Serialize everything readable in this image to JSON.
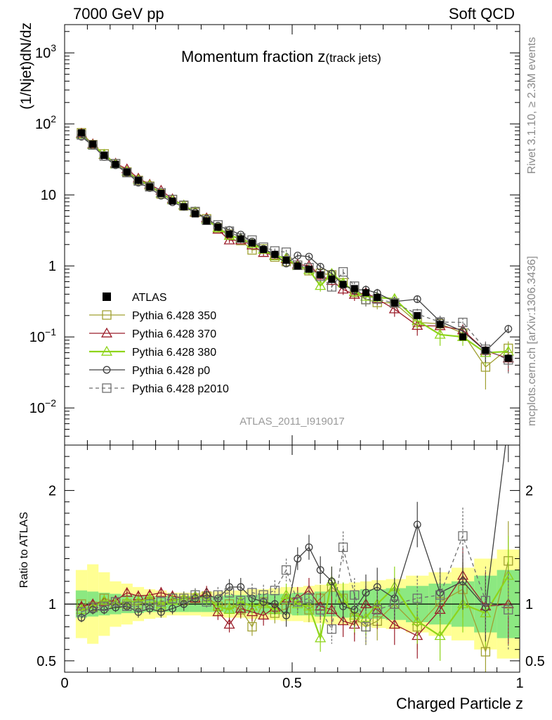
{
  "header": {
    "left": "7000 GeV pp",
    "right": "Soft QCD",
    "side_top": "Rivet 3.1.10, ≥ 2.3M events",
    "side_bottom": "mcplots.cern.ch [arXiv:1306.3436]"
  },
  "chart_data": {
    "type": "line",
    "title_main": "Momentum fraction ",
    "title_var": "z",
    "title_sub": "(track jets)",
    "ylabel_top": "(1/Njet)dN/dz",
    "ylabel_ratio": "Ratio to ATLAS",
    "xlabel": "Charged Particle z",
    "watermark": "ATLAS_2011_I919017",
    "xlim": [
      0,
      1
    ],
    "ylim_top": [
      0.003,
      2500
    ],
    "ylim_ratio": [
      0.4,
      2.4
    ],
    "y_scale_top": "log",
    "x_ticks": [
      {
        "value": 0,
        "label": "0"
      },
      {
        "value": 0.5,
        "label": "0.5"
      },
      {
        "value": 1,
        "label": "1"
      }
    ],
    "y_ticks_top": [
      {
        "value": 1000,
        "base": "10",
        "exp": "3"
      },
      {
        "value": 100,
        "base": "10",
        "exp": "2"
      },
      {
        "value": 10,
        "base": "10",
        "exp": ""
      },
      {
        "value": 1,
        "base": "1",
        "exp": ""
      },
      {
        "value": 0.1,
        "base": "10",
        "exp": "−1"
      },
      {
        "value": 0.01,
        "base": "10",
        "exp": "−2"
      }
    ],
    "y_ticks_ratio": [
      {
        "value": 2,
        "label": "2"
      },
      {
        "value": 1,
        "label": "1"
      },
      {
        "value": 0.5,
        "label": "0.5"
      }
    ],
    "legend_position": "bottom-left",
    "x": [
      0.037,
      0.062,
      0.087,
      0.112,
      0.137,
      0.162,
      0.187,
      0.212,
      0.237,
      0.262,
      0.287,
      0.312,
      0.337,
      0.362,
      0.387,
      0.412,
      0.437,
      0.462,
      0.487,
      0.512,
      0.537,
      0.562,
      0.587,
      0.612,
      0.637,
      0.662,
      0.687,
      0.725,
      0.775,
      0.825,
      0.875,
      0.925,
      0.975
    ],
    "data": {
      "name": "ATLAS",
      "color": "#000000",
      "values": [
        75,
        52,
        36,
        27,
        21,
        16,
        13,
        10.5,
        8.2,
        6.8,
        5.4,
        4.3,
        3.5,
        2.8,
        2.4,
        2.1,
        1.7,
        1.45,
        1.2,
        1.0,
        0.9,
        0.75,
        0.65,
        0.55,
        0.48,
        0.42,
        0.36,
        0.3,
        0.2,
        0.15,
        0.1,
        0.065,
        0.05
      ],
      "ratio_band_inner": [
        0.12,
        0.11,
        0.1,
        0.09,
        0.08,
        0.08,
        0.07,
        0.07,
        0.07,
        0.07,
        0.07,
        0.07,
        0.07,
        0.08,
        0.08,
        0.08,
        0.09,
        0.09,
        0.09,
        0.1,
        0.1,
        0.11,
        0.11,
        0.12,
        0.12,
        0.13,
        0.13,
        0.14,
        0.16,
        0.18,
        0.2,
        0.25,
        0.3
      ],
      "ratio_band_outer": [
        0.3,
        0.35,
        0.28,
        0.2,
        0.18,
        0.15,
        0.13,
        0.12,
        0.1,
        0.1,
        0.1,
        0.11,
        0.11,
        0.12,
        0.12,
        0.13,
        0.13,
        0.14,
        0.15,
        0.15,
        0.16,
        0.17,
        0.18,
        0.18,
        0.19,
        0.2,
        0.21,
        0.22,
        0.25,
        0.28,
        0.32,
        0.4,
        0.48
      ]
    },
    "series": [
      {
        "name": "Pythia 6.428 350",
        "color": "#a0a032",
        "marker": "square",
        "dash": false,
        "ratio": [
          1.0,
          0.98,
          1.05,
          1.02,
          1.0,
          1.0,
          1.02,
          0.98,
          1.05,
          1.03,
          1.05,
          1.07,
          0.98,
          1.0,
          0.95,
          0.8,
          1.02,
          0.92,
          0.96,
          1.02,
          0.95,
          1.05,
          1.15,
          1.05,
          0.88,
          0.8,
          0.85,
          1.0,
          0.8,
          1.02,
          1.13,
          0.58,
          1.38
        ],
        "ratio_err": [
          0.04,
          0.04,
          0.04,
          0.04,
          0.04,
          0.05,
          0.05,
          0.05,
          0.05,
          0.06,
          0.06,
          0.06,
          0.07,
          0.07,
          0.08,
          0.08,
          0.09,
          0.09,
          0.1,
          0.1,
          0.11,
          0.12,
          0.13,
          0.14,
          0.15,
          0.16,
          0.17,
          0.18,
          0.2,
          0.22,
          0.25,
          0.3,
          0.35
        ]
      },
      {
        "name": "Pythia 6.428 370",
        "color": "#9b1d2a",
        "marker": "triangle",
        "dash": false,
        "ratio": [
          0.98,
          1.0,
          1.02,
          1.03,
          1.1,
          1.07,
          1.08,
          1.1,
          1.07,
          1.05,
          1.05,
          1.1,
          0.93,
          0.82,
          0.96,
          0.93,
          0.9,
          0.97,
          1.05,
          1.05,
          1.12,
          0.98,
          0.95,
          0.85,
          0.82,
          1.0,
          0.95,
          0.82,
          0.72,
          0.95,
          1.25,
          0.98,
          1.0
        ],
        "ratio_err": [
          0.04,
          0.04,
          0.04,
          0.04,
          0.04,
          0.05,
          0.05,
          0.05,
          0.05,
          0.06,
          0.06,
          0.06,
          0.07,
          0.07,
          0.08,
          0.08,
          0.09,
          0.09,
          0.1,
          0.1,
          0.11,
          0.12,
          0.13,
          0.14,
          0.15,
          0.16,
          0.17,
          0.18,
          0.2,
          0.22,
          0.25,
          0.3,
          0.35
        ]
      },
      {
        "name": "Pythia 6.428 380",
        "color": "#8ed41a",
        "marker": "triangle",
        "dash": false,
        "ratio": [
          0.95,
          0.97,
          1.03,
          1.0,
          1.02,
          1.02,
          1.05,
          1.0,
          1.03,
          1.05,
          1.07,
          1.05,
          0.98,
          0.95,
          1.02,
          0.98,
          1.0,
          0.95,
          1.08,
          1.0,
          0.98,
          0.7,
          1.2,
          1.05,
          0.9,
          0.88,
          1.0,
          1.15,
          0.85,
          0.72,
          1.0,
          0.92,
          1.25
        ],
        "ratio_err": [
          0.04,
          0.04,
          0.04,
          0.04,
          0.04,
          0.05,
          0.05,
          0.05,
          0.05,
          0.06,
          0.06,
          0.06,
          0.07,
          0.07,
          0.08,
          0.08,
          0.09,
          0.09,
          0.1,
          0.1,
          0.11,
          0.12,
          0.13,
          0.14,
          0.15,
          0.16,
          0.17,
          0.18,
          0.2,
          0.22,
          0.25,
          0.3,
          0.35
        ]
      },
      {
        "name": "Pythia 6.428 p0",
        "color": "#404040",
        "marker": "circle",
        "dash": false,
        "ratio": [
          0.88,
          0.95,
          0.95,
          0.97,
          0.98,
          0.93,
          0.96,
          0.93,
          0.96,
          1.0,
          1.05,
          1.08,
          1.05,
          1.15,
          1.15,
          1.05,
          1.02,
          1.0,
          0.9,
          1.4,
          1.5,
          1.3,
          1.2,
          0.98,
          0.95,
          1.1,
          1.15,
          1.05,
          1.7,
          1.1,
          1.2,
          0.97,
          2.6
        ],
        "ratio_err": [
          0.04,
          0.04,
          0.04,
          0.04,
          0.04,
          0.05,
          0.05,
          0.05,
          0.05,
          0.06,
          0.06,
          0.06,
          0.07,
          0.07,
          0.08,
          0.08,
          0.09,
          0.09,
          0.1,
          0.1,
          0.11,
          0.12,
          0.13,
          0.14,
          0.15,
          0.16,
          0.17,
          0.18,
          0.2,
          0.22,
          0.25,
          0.3,
          0.35
        ]
      },
      {
        "name": "Pythia 6.428 p2010",
        "color": "#6e6e6e",
        "marker": "square",
        "dash": true,
        "ratio": [
          0.93,
          0.97,
          0.98,
          1.02,
          0.98,
          0.98,
          1.0,
          1.02,
          1.05,
          1.05,
          1.08,
          1.02,
          1.08,
          1.1,
          1.03,
          1.1,
          1.08,
          1.12,
          1.3,
          1.02,
          1.05,
          0.95,
          0.78,
          1.5,
          1.08,
          0.8,
          0.95,
          1.0,
          1.05,
          1.08,
          1.6,
          1.03,
          0.95
        ],
        "ratio_err": [
          0.04,
          0.04,
          0.04,
          0.04,
          0.04,
          0.05,
          0.05,
          0.05,
          0.05,
          0.06,
          0.06,
          0.06,
          0.07,
          0.07,
          0.08,
          0.08,
          0.09,
          0.09,
          0.1,
          0.1,
          0.11,
          0.12,
          0.13,
          0.14,
          0.15,
          0.16,
          0.17,
          0.18,
          0.2,
          0.22,
          0.25,
          0.3,
          0.35
        ]
      }
    ]
  }
}
